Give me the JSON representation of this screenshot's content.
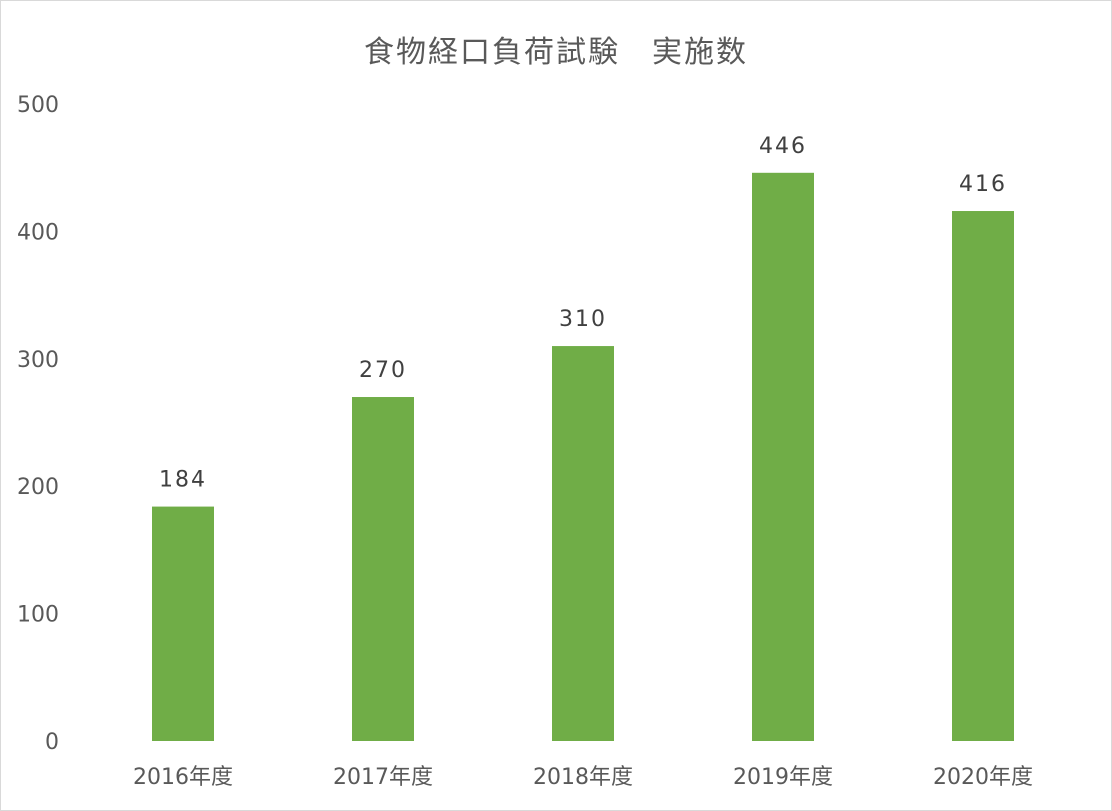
{
  "chart_data": {
    "type": "bar",
    "title": "食物経口負荷試験　実施数",
    "categories": [
      "2016年度",
      "2017年度",
      "2018年度",
      "2019年度",
      "2020年度"
    ],
    "values": [
      184,
      270,
      310,
      446,
      416
    ],
    "ylim": [
      0,
      500
    ],
    "yticks": [
      0,
      100,
      200,
      300,
      400,
      500
    ],
    "xlabel": "",
    "ylabel": "",
    "grid": false,
    "legend": "none",
    "data_labels": true,
    "bar_color": "#70ad47"
  }
}
